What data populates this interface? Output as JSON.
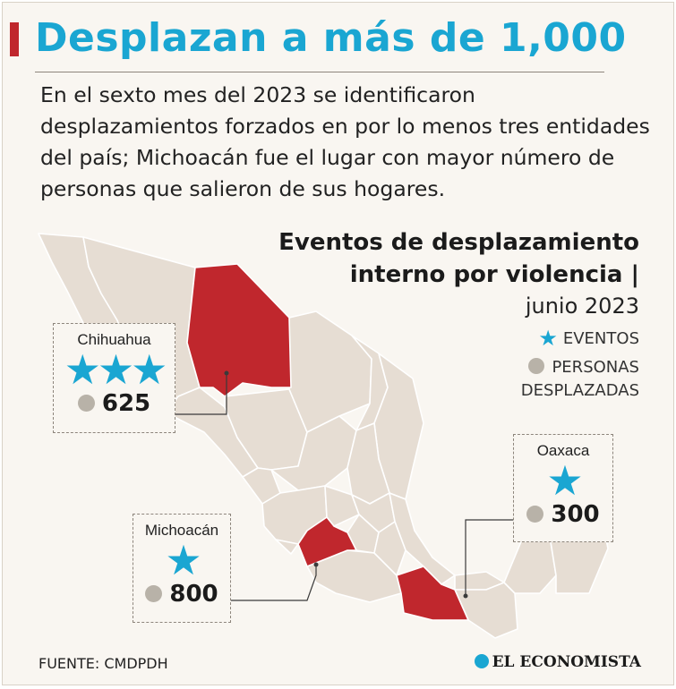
{
  "headline": "Desplazan a más de 1,000",
  "intro": "En el sexto mes del 2023 se identificaron desplazamientos forzados en por lo menos tres entidades del país; Michoacán fue el lugar con mayor número de personas que salieron de sus hogares.",
  "map": {
    "title_line1": "Eventos de desplazamiento",
    "title_line2": "interno por violencia |",
    "subtitle": "junio 2023",
    "legend": {
      "events": "EVENTOS",
      "people_line1": "PERSONAS",
      "people_line2": "DESPLAZADAS"
    },
    "colors": {
      "highlight": "#c0272d",
      "land": "#e6ddd3",
      "star": "#1aa6d2",
      "dot": "#b8b2a8"
    },
    "icons": {
      "events": "star-icon",
      "people": "dot-icon"
    },
    "states": [
      {
        "name": "Chihuahua",
        "events": 3,
        "events_display": "★★★",
        "people": "625"
      },
      {
        "name": "Michoacán",
        "events": 1,
        "events_display": "★",
        "people": "800"
      },
      {
        "name": "Oaxaca",
        "events": 1,
        "events_display": "★",
        "people": "300"
      }
    ]
  },
  "footer": {
    "source": "FUENTE: CMDPDH",
    "brand": "EL ECONOMISTA"
  }
}
